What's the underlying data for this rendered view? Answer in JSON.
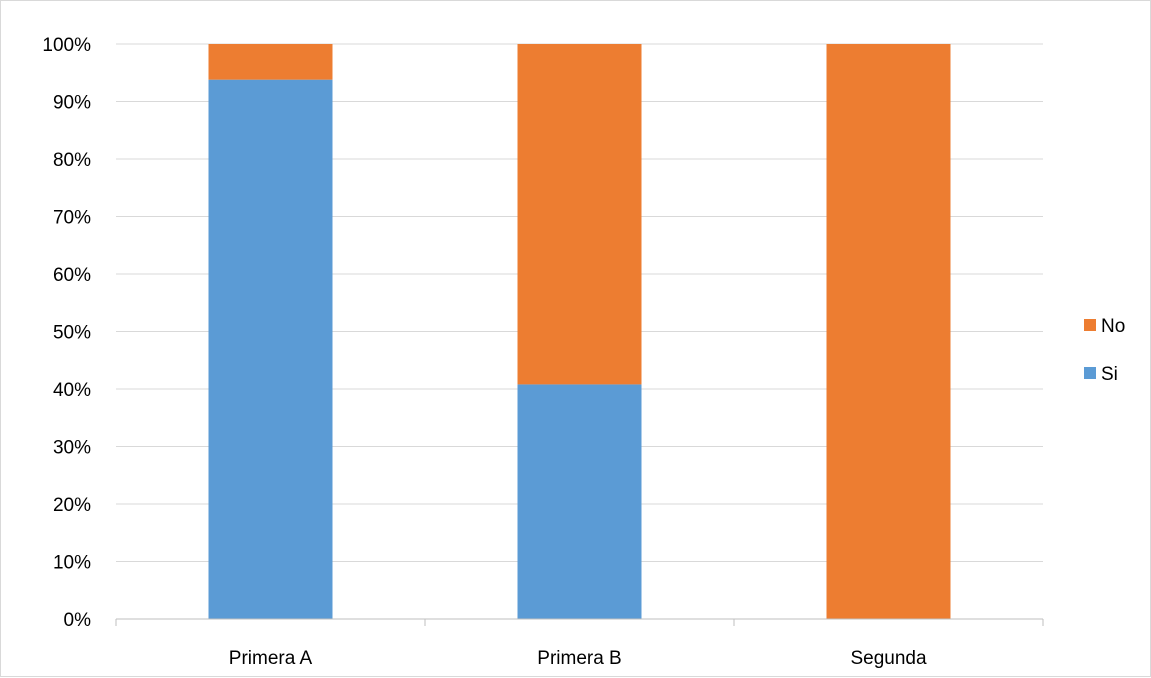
{
  "chart_data": {
    "type": "bar",
    "stacked": true,
    "percent": true,
    "categories": [
      "Primera A",
      "Primera B",
      "Segunda"
    ],
    "series": [
      {
        "name": "Si",
        "color": "#5b9bd5",
        "values": [
          93.8,
          40.8,
          0
        ]
      },
      {
        "name": "No",
        "color": "#ed7d31",
        "values": [
          6.2,
          59.2,
          100
        ]
      }
    ],
    "ylim": [
      0,
      100
    ],
    "yticks": [
      "0%",
      "10%",
      "20%",
      "30%",
      "40%",
      "50%",
      "60%",
      "70%",
      "80%",
      "90%",
      "100%"
    ],
    "grid": true,
    "legend": {
      "position": "right",
      "order": [
        "No",
        "Si"
      ]
    },
    "title": "",
    "xlabel": "",
    "ylabel": ""
  }
}
